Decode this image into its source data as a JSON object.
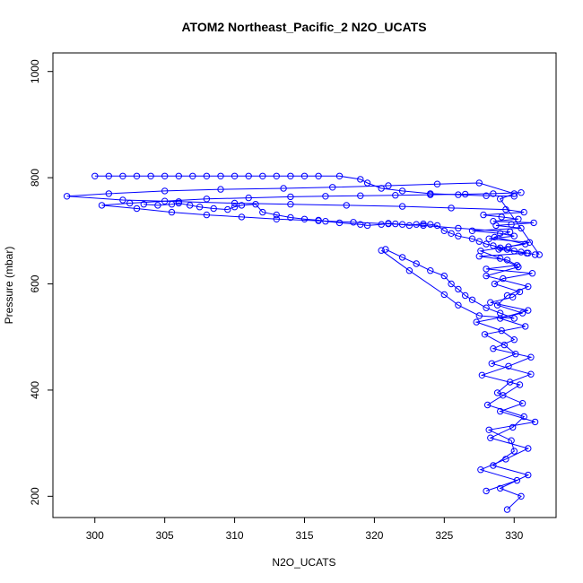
{
  "chart_data": {
    "type": "scatter",
    "title": "ATOM2 Northeast_Pacific_2 N2O_UCATS",
    "xlabel": "N2O_UCATS",
    "ylabel": "Pressure (mbar)",
    "xlim": [
      297,
      333
    ],
    "ylim": [
      1035,
      160
    ],
    "y_reversed": true,
    "grid": false,
    "legend": "none",
    "x_ticks": [
      300,
      305,
      310,
      315,
      320,
      325,
      330
    ],
    "y_ticks": [
      200,
      400,
      600,
      800,
      1000
    ],
    "color": "#0000ff",
    "marker": "open-circle",
    "connected": true,
    "series": [
      {
        "x": [
          329.5,
          330.5,
          329.0,
          331.0,
          328.5,
          330.0,
          329.8,
          328.2,
          331.5,
          329.0,
          330.6,
          328.8,
          329.7,
          331.2,
          328.4,
          330.1,
          329.3,
          327.9,
          330.8,
          329.0,
          331.0,
          328.3,
          329.9,
          330.4,
          328.6,
          329.2,
          331.3,
          328.0,
          330.2,
          329.5,
          327.5,
          330.9,
          328.9,
          329.6,
          331.1,
          328.2,
          330.0,
          329.0,
          327.0,
          330.5,
          328.7,
          329.8,
          331.4,
          328.5,
          330.3,
          329.1,
          327.8,
          330.7,
          329.4,
          325.5,
          322.0,
          318.0,
          314.0,
          310.0,
          306.0,
          302.0,
          298.0,
          301.0,
          305.0,
          309.0,
          313.5,
          317.0,
          321.0,
          324.5,
          327.5,
          330.0,
          329.0,
          331.8
        ],
        "y": [
          175,
          200,
          215,
          240,
          258,
          285,
          305,
          325,
          340,
          360,
          375,
          395,
          415,
          430,
          450,
          468,
          485,
          505,
          520,
          535,
          550,
          565,
          575,
          585,
          600,
          610,
          620,
          628,
          635,
          645,
          652,
          658,
          665,
          670,
          678,
          685,
          690,
          695,
          700,
          705,
          710,
          712,
          715,
          718,
          722,
          726,
          730,
          735,
          740,
          743,
          746,
          748,
          750,
          752,
          755,
          758,
          765,
          770,
          775,
          778,
          780,
          782,
          785,
          788,
          790,
          770,
          760,
          655
        ]
      },
      {
        "x": [
          328.0,
          330.2,
          327.6,
          329.4,
          331.0,
          328.3,
          329.9,
          330.7,
          328.1,
          329.2,
          330.4,
          327.7,
          329.6,
          331.2,
          328.5,
          330.0,
          329.1,
          327.3,
          330.6,
          328.8,
          329.5,
          331.0,
          328.0,
          330.3,
          329.0,
          327.6,
          330.8,
          328.6,
          329.7,
          326.0,
          323.5,
          321.0,
          318.5,
          316.0,
          313.0,
          310.5,
          308.0,
          305.5,
          303.0,
          300.5,
          302.5,
          305.0,
          308.0,
          311.0,
          314.0,
          316.5,
          319.0,
          321.5,
          324.0,
          326.5,
          328.5,
          330.5
        ],
        "y": [
          210,
          230,
          250,
          270,
          290,
          310,
          330,
          350,
          372,
          390,
          410,
          428,
          445,
          462,
          478,
          495,
          512,
          528,
          545,
          560,
          578,
          595,
          615,
          632,
          648,
          662,
          675,
          688,
          698,
          705,
          710,
          713,
          716,
          719,
          722,
          726,
          730,
          735,
          742,
          748,
          752,
          756,
          760,
          762,
          764,
          765,
          766,
          767,
          768,
          769,
          770,
          772
        ]
      },
      {
        "x": [
          303.5,
          304.5,
          305.5,
          306.0,
          306.8,
          307.5,
          308.5,
          309.5,
          310.0,
          310.5,
          311.5,
          312.0,
          313.0,
          314.0,
          315.0,
          316.0,
          316.5,
          317.5,
          319.0,
          319.5,
          320.5,
          321.0,
          321.5,
          322.0,
          322.5,
          323.0,
          323.5,
          324.0,
          324.5,
          325.0,
          325.5,
          326.0,
          327.0,
          327.5,
          328.0,
          328.5,
          329.0,
          329.5,
          330.0,
          330.5,
          331.0,
          331.5
        ],
        "y": [
          750,
          748,
          750,
          752,
          748,
          745,
          742,
          740,
          745,
          748,
          750,
          735,
          730,
          725,
          722,
          720,
          718,
          715,
          712,
          710,
          712,
          714,
          713,
          712,
          710,
          712,
          713,
          712,
          710,
          700,
          695,
          690,
          685,
          680,
          675,
          672,
          668,
          665,
          662,
          660,
          658,
          655
        ]
      },
      {
        "x": [
          300.0,
          301.0,
          302.0,
          303.0,
          304.0,
          305.0,
          306.0,
          307.0,
          308.0,
          309.0,
          310.0,
          311.0,
          312.0,
          313.0,
          314.0,
          315.0,
          316.0,
          317.5,
          319.0,
          319.5,
          320.5,
          322.0,
          324.0,
          326.0,
          328.0,
          330.0
        ],
        "y": [
          803,
          803,
          803,
          803,
          803,
          803,
          803,
          803,
          803,
          803,
          803,
          803,
          803,
          803,
          803,
          803,
          803,
          803,
          797,
          790,
          780,
          775,
          770,
          768,
          766,
          765
        ]
      },
      {
        "x": [
          320.8,
          322.0,
          323.0,
          324.0,
          325.0,
          325.5,
          326.0,
          326.5,
          327.0,
          328.0,
          329.0,
          330.0,
          327.5,
          326.0,
          325.0,
          322.5,
          320.5
        ],
        "y": [
          665,
          650,
          638,
          625,
          615,
          600,
          590,
          578,
          570,
          555,
          545,
          535,
          540,
          560,
          580,
          625,
          663
        ]
      }
    ]
  }
}
